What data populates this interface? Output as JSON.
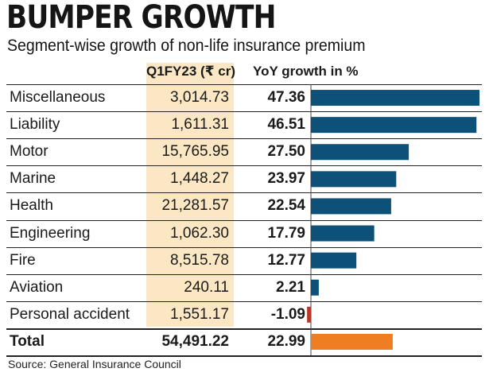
{
  "header": {
    "title": "BUMPER GROWTH",
    "subtitle": "Segment-wise growth of non-life insurance premium"
  },
  "table": {
    "col_value": "Q1FY23 (₹ cr)",
    "col_yoy": "YoY growth in %",
    "rows": [
      {
        "segment": "Miscellaneous",
        "value": "3,014.73",
        "yoy": "47.36"
      },
      {
        "segment": "Liability",
        "value": "1,611.31",
        "yoy": "46.51"
      },
      {
        "segment": "Motor",
        "value": "15,765.95",
        "yoy": "27.50"
      },
      {
        "segment": "Marine",
        "value": "1,448.27",
        "yoy": "23.97"
      },
      {
        "segment": "Health",
        "value": "21,281.57",
        "yoy": "22.54"
      },
      {
        "segment": "Engineering",
        "value": "1,062.30",
        "yoy": "17.79"
      },
      {
        "segment": "Fire",
        "value": "8,515.78",
        "yoy": "12.77"
      },
      {
        "segment": "Aviation",
        "value": "240.11",
        "yoy": "2.21"
      },
      {
        "segment": "Personal accident",
        "value": "1,551.17",
        "yoy": "-1.09"
      }
    ],
    "total": {
      "segment": "Total",
      "value": "54,491.22",
      "yoy": "22.99"
    }
  },
  "chart_data": {
    "type": "bar",
    "title": "BUMPER GROWTH",
    "subtitle": "Segment-wise growth of non-life insurance premium",
    "ylabel": "YoY growth in %",
    "categories": [
      "Miscellaneous",
      "Liability",
      "Motor",
      "Marine",
      "Health",
      "Engineering",
      "Fire",
      "Aviation",
      "Personal accident",
      "Total"
    ],
    "series": [
      {
        "name": "Q1FY23 (₹ cr)",
        "values": [
          3014.73,
          1611.31,
          15765.95,
          1448.27,
          21281.57,
          1062.3,
          8515.78,
          240.11,
          1551.17,
          54491.22
        ]
      },
      {
        "name": "YoY growth in %",
        "values": [
          47.36,
          46.51,
          27.5,
          23.97,
          22.54,
          17.79,
          12.77,
          2.21,
          -1.09,
          22.99
        ]
      }
    ],
    "xlim": [
      -1.09,
      47.36
    ]
  },
  "colors": {
    "positive_bar": "#0d5178",
    "negative_bar": "#b7382b",
    "total_bar": "#ef7d22",
    "value_column_bg": "#fbe7c3"
  },
  "footer": {
    "source": "Source: General Insurance Council"
  }
}
